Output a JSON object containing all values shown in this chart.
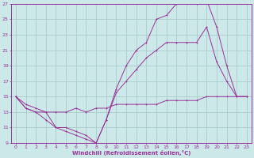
{
  "xlabel": "Windchill (Refroidissement éolien,°C)",
  "bg_color": "#cce8e8",
  "grid_color": "#aacccc",
  "line_color": "#993399",
  "xlim": [
    -0.5,
    23.5
  ],
  "ylim": [
    9,
    27
  ],
  "xticks": [
    0,
    1,
    2,
    3,
    4,
    5,
    6,
    7,
    8,
    9,
    10,
    11,
    12,
    13,
    14,
    15,
    16,
    17,
    18,
    19,
    20,
    21,
    22,
    23
  ],
  "yticks": [
    9,
    11,
    13,
    15,
    17,
    19,
    21,
    23,
    25,
    27
  ],
  "line1_x": [
    0,
    1,
    2,
    3,
    4,
    5,
    6,
    7,
    8,
    9,
    10,
    11,
    12,
    13,
    14,
    15,
    16,
    17,
    18,
    19,
    20,
    21,
    22,
    23
  ],
  "line1_y": [
    15,
    13.5,
    13,
    13,
    13,
    13,
    13.5,
    13,
    13.5,
    13.5,
    14,
    14,
    14,
    14,
    14,
    14.5,
    14.5,
    14.5,
    14.5,
    15,
    15,
    15,
    15,
    15
  ],
  "line2_x": [
    0,
    1,
    2,
    3,
    4,
    5,
    6,
    7,
    8,
    9,
    10,
    11,
    12,
    13,
    14,
    15,
    16,
    17,
    18,
    19,
    20,
    21,
    22,
    23
  ],
  "line2_y": [
    15,
    13.5,
    13,
    12,
    11,
    10.5,
    10,
    9.5,
    9,
    12,
    15.5,
    17,
    18.5,
    20,
    21,
    22,
    22,
    22,
    22,
    24,
    19.5,
    17,
    15,
    15
  ],
  "line3_x": [
    0,
    1,
    2,
    3,
    4,
    5,
    6,
    7,
    8,
    9,
    10,
    11,
    12,
    13,
    14,
    15,
    16,
    17,
    18,
    19,
    20,
    21,
    22,
    23
  ],
  "line3_y": [
    15,
    14,
    13.5,
    13,
    11,
    11,
    10.5,
    10,
    9,
    12,
    16,
    19,
    21,
    22,
    25,
    25.5,
    27,
    27.5,
    27,
    27.5,
    24,
    19,
    15,
    15
  ]
}
